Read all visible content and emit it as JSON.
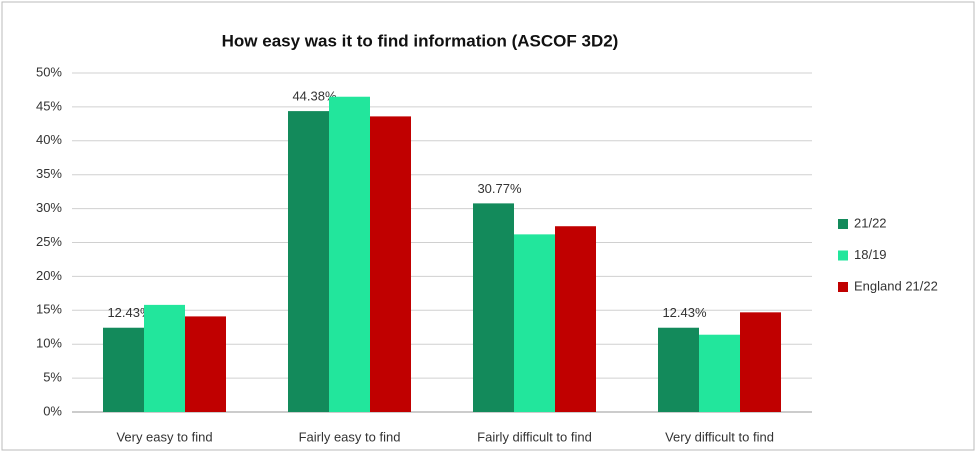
{
  "chart_data": {
    "type": "bar",
    "title": "How easy was it to find information (ASCOF 3D2)",
    "categories": [
      "Very easy to find",
      "Fairly easy to find",
      "Fairly difficult to find",
      "Very difficult to find"
    ],
    "series": [
      {
        "name": "21/22",
        "color": "#138a5b",
        "values": [
          12.43,
          44.38,
          30.77,
          12.43
        ],
        "value_labels": [
          "12.43%",
          "44.38%",
          "30.77%",
          "12.43%"
        ]
      },
      {
        "name": "18/19",
        "color": "#22e69c",
        "values": [
          15.8,
          46.5,
          26.2,
          11.4
        ]
      },
      {
        "name": "England 21/22",
        "color": "#c00000",
        "values": [
          14.1,
          43.6,
          27.4,
          14.7
        ]
      }
    ],
    "ylim": [
      0,
      50
    ],
    "yticks": [
      {
        "value": 0,
        "label": "0%"
      },
      {
        "value": 5,
        "label": "5%"
      },
      {
        "value": 10,
        "label": "10%"
      },
      {
        "value": 15,
        "label": "15%"
      },
      {
        "value": 20,
        "label": "20%"
      },
      {
        "value": 25,
        "label": "25%"
      },
      {
        "value": 30,
        "label": "30%"
      },
      {
        "value": 35,
        "label": "35%"
      },
      {
        "value": 40,
        "label": "40%"
      },
      {
        "value": 45,
        "label": "45%"
      },
      {
        "value": 50,
        "label": "50%"
      }
    ],
    "grid": true,
    "legend": "right"
  }
}
